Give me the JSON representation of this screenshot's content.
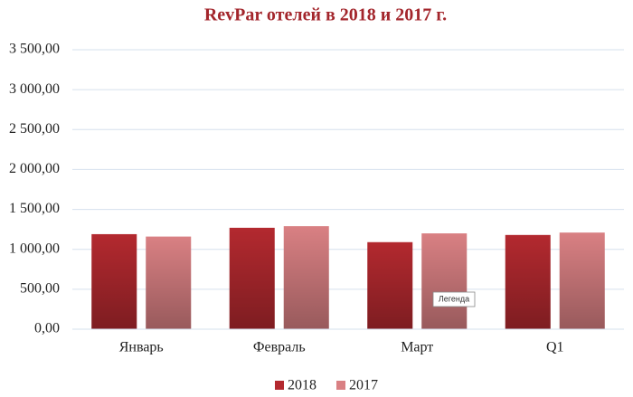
{
  "chart_data": {
    "type": "bar",
    "title": "RevPar отелей в 2018 и 2017 г.",
    "categories": [
      "Январь",
      "Февраль",
      "Март",
      "Q1"
    ],
    "series": [
      {
        "name": "2018",
        "color": "#b3292f",
        "values": [
          1190,
          1270,
          1090,
          1180
        ]
      },
      {
        "name": "2017",
        "color": "#d98083",
        "values": [
          1160,
          1290,
          1200,
          1210
        ]
      }
    ],
    "ylim": [
      0,
      3500
    ],
    "yticks": [
      {
        "value": 0,
        "label": "0,00"
      },
      {
        "value": 500,
        "label": "500,00"
      },
      {
        "value": 1000,
        "label": "1 000,00"
      },
      {
        "value": 1500,
        "label": "1 500,00"
      },
      {
        "value": 2000,
        "label": "2 000,00"
      },
      {
        "value": 2500,
        "label": "2 500,00"
      },
      {
        "value": 3000,
        "label": "3 000,00"
      },
      {
        "value": 3500,
        "label": "3 500,00"
      }
    ],
    "grid": true,
    "legend": "bottom",
    "tooltip": "Легенда"
  }
}
